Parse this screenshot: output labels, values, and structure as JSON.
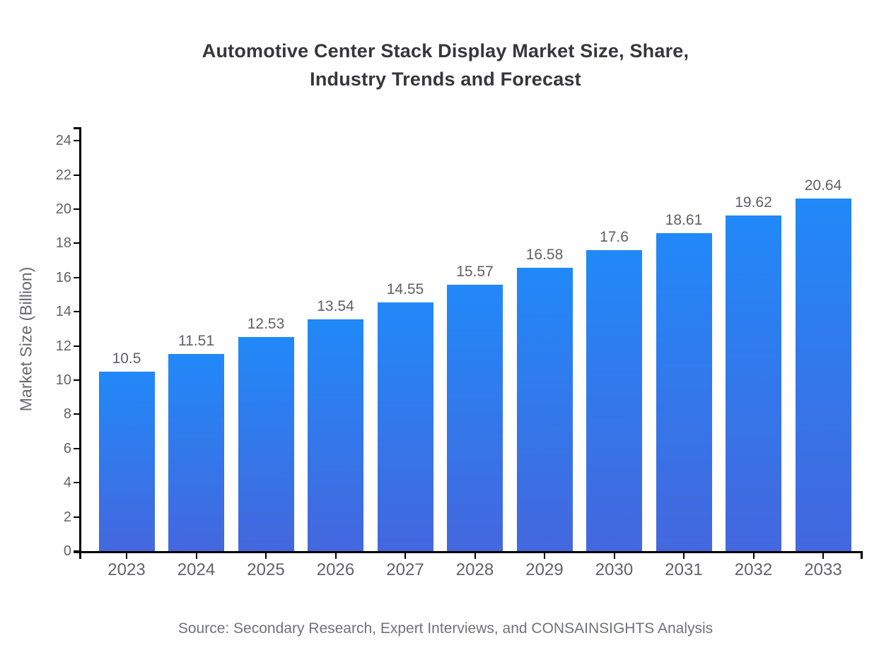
{
  "chart_data": {
    "type": "bar",
    "title": "Automotive Center Stack Display Market Size, Share,\nIndustry Trends and Forecast",
    "ylabel": "Market Size (Billion)",
    "xlabel": "",
    "categories": [
      "2023",
      "2024",
      "2025",
      "2026",
      "2027",
      "2028",
      "2029",
      "2030",
      "2031",
      "2032",
      "2033"
    ],
    "values": [
      10.5,
      11.51,
      12.53,
      13.54,
      14.55,
      15.57,
      16.58,
      17.6,
      18.61,
      19.62,
      20.64
    ],
    "ylim": [
      0,
      24
    ],
    "ytick_step": 2,
    "grid": false,
    "legend": false,
    "bar_color_top": "#2189f8",
    "bar_color_bottom": "#4467de"
  },
  "source_note": "Source: Secondary Research, Expert Interviews, and CONSAINSIGHTS Analysis"
}
